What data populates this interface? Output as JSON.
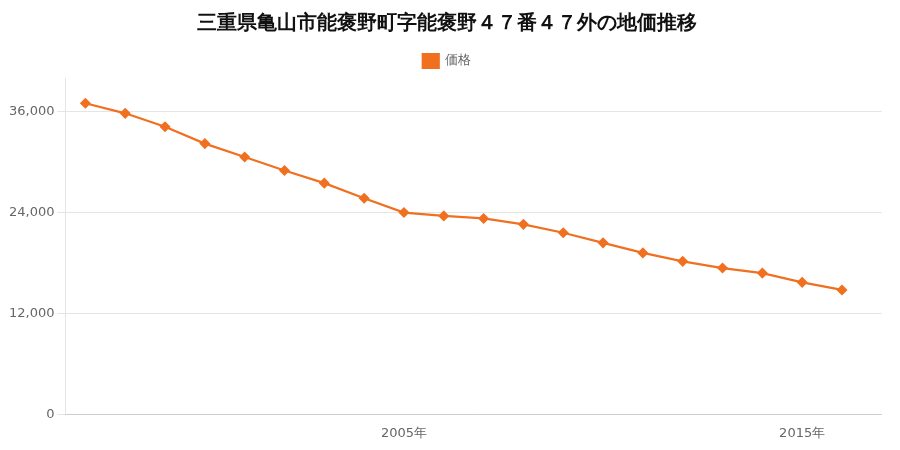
{
  "chart_data": {
    "type": "line",
    "title": "三重県亀山市能褒野町字能褒野４７番４７外の地価推移",
    "x": [
      1997,
      1998,
      1999,
      2000,
      2001,
      2002,
      2003,
      2004,
      2005,
      2006,
      2007,
      2008,
      2009,
      2010,
      2011,
      2012,
      2013,
      2014,
      2015,
      2016
    ],
    "series": [
      {
        "name": "価格",
        "color": "#f07020",
        "marker": "diamond",
        "line_style": "solid",
        "values": [
          37000,
          35800,
          34200,
          32200,
          30600,
          29000,
          27500,
          25700,
          24000,
          23600,
          23300,
          22600,
          21600,
          20400,
          19200,
          18200,
          17400,
          16800,
          15700,
          14800
        ]
      }
    ],
    "xlim": [
      1996.5,
      2017
    ],
    "xticks": [
      {
        "value": 2005,
        "label": "2005年"
      },
      {
        "value": 2015,
        "label": "2015年"
      }
    ],
    "ylim": [
      0,
      40000
    ],
    "yticks": [
      0,
      {
        "value": 12000,
        "label": "12,000"
      },
      {
        "value": 24000,
        "label": "24,000"
      },
      {
        "value": 36000,
        "label": "36,000"
      }
    ],
    "grid": "y",
    "legend": "top"
  }
}
